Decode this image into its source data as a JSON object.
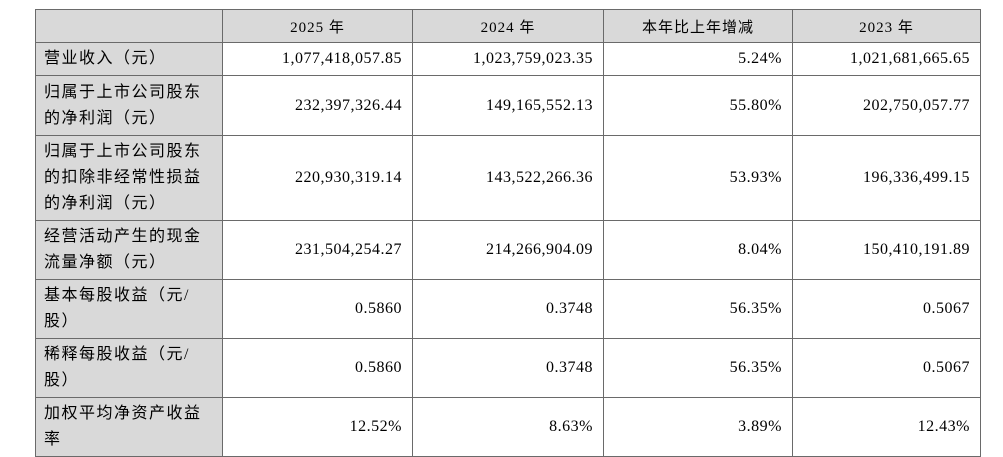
{
  "colors": {
    "header_bg": "#d9d9d9",
    "border": "#6a6a6a",
    "text": "#000000",
    "page_bg": "#ffffff"
  },
  "table": {
    "columns": [
      "",
      "2025 年",
      "2024 年",
      "本年比上年增减",
      "2023 年"
    ],
    "rows": [
      {
        "label": "营业收入（元）",
        "values": [
          "1,077,418,057.85",
          "1,023,759,023.35",
          "5.24%",
          "1,021,681,665.65"
        ]
      },
      {
        "label": "归属于上市公司股东的净利润（元）",
        "values": [
          "232,397,326.44",
          "149,165,552.13",
          "55.80%",
          "202,750,057.77"
        ]
      },
      {
        "label": "归属于上市公司股东的扣除非经常性损益的净利润（元）",
        "values": [
          "220,930,319.14",
          "143,522,266.36",
          "53.93%",
          "196,336,499.15"
        ]
      },
      {
        "label": "经营活动产生的现金流量净额（元）",
        "values": [
          "231,504,254.27",
          "214,266,904.09",
          "8.04%",
          "150,410,191.89"
        ]
      },
      {
        "label": "基本每股收益（元/股）",
        "values": [
          "0.5860",
          "0.3748",
          "56.35%",
          "0.5067"
        ]
      },
      {
        "label": "稀释每股收益（元/股）",
        "values": [
          "0.5860",
          "0.3748",
          "56.35%",
          "0.5067"
        ]
      },
      {
        "label": "加权平均净资产收益率",
        "values": [
          "12.52%",
          "8.63%",
          "3.89%",
          "12.43%"
        ]
      }
    ]
  }
}
